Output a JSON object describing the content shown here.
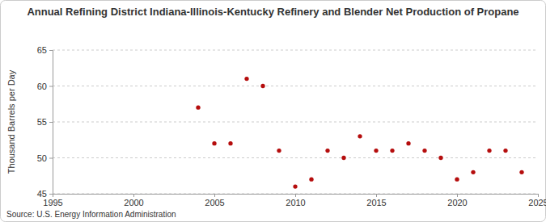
{
  "chart_data": {
    "type": "scatter",
    "title": "Annual Refining District Indiana-Illinois-Kentucky Refinery and Blender Net Production of Propane",
    "y_label": "Thousand Barrels per Day",
    "source": "Source: U.S. Energy Information Administration",
    "x": [
      2004,
      2005,
      2006,
      2007,
      2008,
      2009,
      2010,
      2011,
      2012,
      2013,
      2014,
      2015,
      2016,
      2017,
      2018,
      2019,
      2020,
      2021,
      2022,
      2023,
      2024
    ],
    "values": [
      57,
      52,
      52,
      61,
      60,
      51,
      46,
      47,
      51,
      50,
      53,
      51,
      51,
      52,
      51,
      50,
      47,
      48,
      51,
      51,
      48
    ],
    "color": "#b50d0d",
    "marker": "circle",
    "xlim": [
      1995,
      2025
    ],
    "xticks": [
      1995,
      2000,
      2005,
      2010,
      2015,
      2020,
      2025
    ],
    "ylim": [
      45,
      65
    ],
    "yticks": [
      45,
      50,
      55,
      60,
      65
    ],
    "grid": true
  }
}
